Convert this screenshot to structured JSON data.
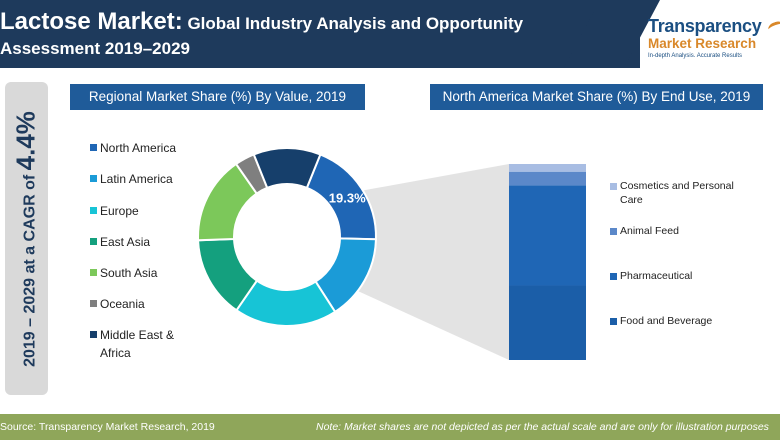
{
  "header": {
    "title_main": "Lactose Market:",
    "title_rest": " Global Industry Analysis and Opportunity",
    "title_line2": "Assessment 2019–2029"
  },
  "logo": {
    "line1": "Transparency",
    "line2": "Market Research",
    "tagline": "In-depth Analysis. Accurate Results"
  },
  "cagr": {
    "prefix": "2019 – 2029 at a CAGR of ",
    "value": "4.4%"
  },
  "footer": {
    "source": "Source: Transparency Market Research, 2019",
    "note": "Note: Market shares are not depicted as per the actual scale and are only for illustration purposes"
  },
  "colors": {
    "header": "#1e3a5c",
    "panel_title": "#1f5b99",
    "footer": "#8fa65a",
    "cagr_bar": "#d9d9d9",
    "brand_orange": "#d9882a"
  },
  "chart_data": [
    {
      "type": "pie",
      "title": "Regional Market Share (%) By Value, 2019",
      "categories": [
        "North America",
        "Latin America",
        "Europe",
        "East Asia",
        "South Asia",
        "Oceania",
        "Middle East & Africa"
      ],
      "values": [
        19.3,
        15.5,
        18.7,
        14.8,
        15.9,
        3.6,
        12.2
      ],
      "colors": [
        "#1f66b5",
        "#1b9bd7",
        "#17c4d6",
        "#14a07e",
        "#7cc85a",
        "#7f7f7f",
        "#163f6b"
      ],
      "data_labels": [
        {
          "category": "North America",
          "text": "19.3%"
        }
      ],
      "legend_position": "left"
    },
    {
      "type": "bar",
      "stacked": true,
      "title": "North America Market Share (%) By End Use, 2019",
      "categories": [
        "Cosmetics and Personal Care",
        "Animal Feed",
        "Pharmaceutical",
        "Food and Beverage"
      ],
      "values": [
        4,
        7,
        51,
        38
      ],
      "colors": [
        "#a8bde3",
        "#5b88c9",
        "#1f66b5",
        "#1b5ea8"
      ],
      "legend_position": "right"
    }
  ]
}
